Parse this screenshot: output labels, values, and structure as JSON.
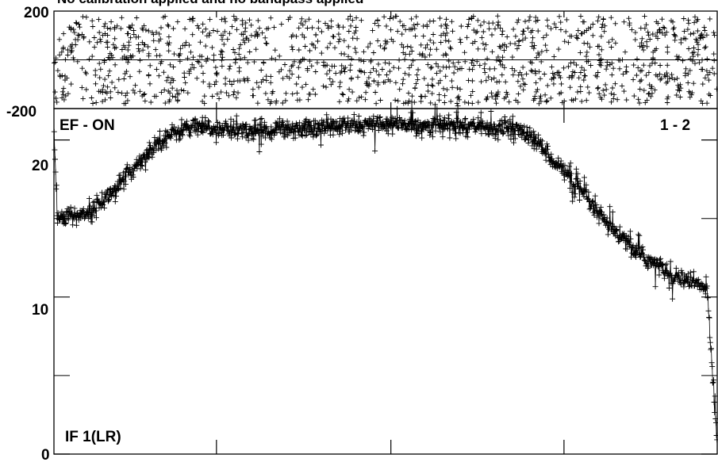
{
  "chart_data": [
    {
      "type": "scatter",
      "panel": "phase",
      "title": "No calibration applied and no bandpass applied",
      "y_ticks": [
        200,
        -200
      ],
      "ylim": [
        -200,
        200
      ],
      "xlim": [
        0,
        1
      ],
      "x_major_ticks": [
        0.245,
        0.508,
        0.769
      ],
      "zero_line": 0,
      "points_description": "uniform scatter of phase values between about -180 and 180",
      "n_points": 1300
    },
    {
      "type": "scatter",
      "panel": "amplitude",
      "label_top_left": "EF - ON",
      "label_top_right": "1 - 2",
      "label_bottom_left": "IF 1(LR)",
      "y_ticks": [
        0,
        10,
        20
      ],
      "y_minor_ticks": [
        5,
        15
      ],
      "ylim": [
        0,
        22.0
      ],
      "xlim": [
        0,
        1
      ],
      "x_major_ticks": [
        0.245,
        0.508,
        0.769
      ],
      "curve": {
        "x": [
          0.0,
          0.005,
          0.04,
          0.07,
          0.1,
          0.13,
          0.16,
          0.2,
          0.25,
          0.3,
          0.4,
          0.5,
          0.6,
          0.66,
          0.7,
          0.73,
          0.78,
          0.83,
          0.88,
          0.93,
          0.97,
          0.985,
          1.0
        ],
        "y": [
          21.0,
          15.0,
          15.2,
          16.0,
          17.2,
          18.7,
          20.0,
          20.8,
          20.7,
          20.6,
          20.8,
          21.0,
          20.9,
          20.8,
          20.7,
          19.8,
          17.5,
          14.8,
          12.8,
          11.5,
          10.8,
          10.5,
          0.5
        ]
      },
      "noise_amplitude": 0.6,
      "n_points": 1400
    }
  ]
}
